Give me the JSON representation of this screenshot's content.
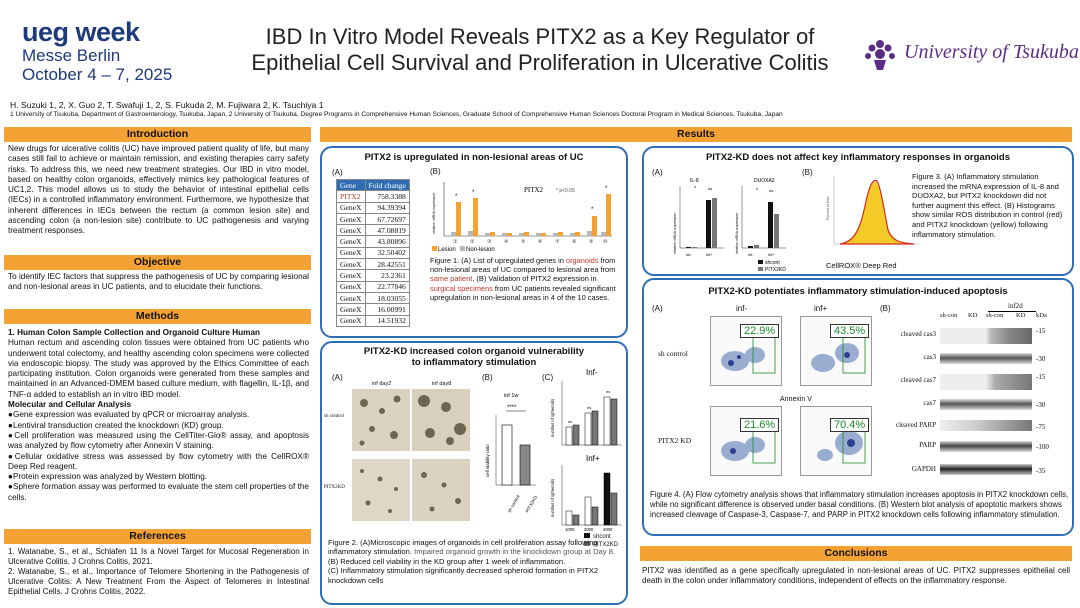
{
  "header": {
    "logo_main": "ueg week",
    "logo_city": "Messe Berlin",
    "logo_dates": "October 4 – 7, 2025",
    "title_line1": "IBD In Vitro Model Reveals PITX2 as a Key Regulator of",
    "title_line2": "Epithelial Cell Survival and Proliferation in Ulcerative Colitis",
    "university": "University of Tsukuba",
    "authors": "H. Suzuki 1, 2,  X. Guo 2,  T. Swafuji 1, 2,  S. Fukuda 2,  M. Fujiwara 2,  K. Tsuchiya 1",
    "affiliations": "1 University of Tsukuba, Department of Gastroenterology, Tsukuba, Japan, 2 University of Tsukuba, Degree Programs in Comprehensive Human Sciences, Graduate School of Comprehensive Human Sciences Doctoral Program in Medical Sciences, Tsukuba, Japan"
  },
  "colors": {
    "orange": "#f4a233",
    "blue": "#2f6db5",
    "green": "#1a8a2a",
    "red": "#c0392b",
    "purple": "#5b2d83"
  },
  "introduction": {
    "heading": "Introduction",
    "text": "New drugs for ulcerative colitis (UC) have improved patient quality of life, but many cases still fail to achieve or maintain remission, and existing therapies carry safety risks. To address this, we need new treatment strategies. Our IBD in vitro model, based on healthy colon organoids, effectively mimics key pathological features of UC1,2. This model allows us to study the behavior of intestinal epithelial cells (IECs) in a controlled inflammatory environment. Furthermore, we hypothesize that inherent differences in IECs between the rectum (a common lesion site) and ascending colon (a non-lesion site) contribute to UC pathogenesis and varying treatment responses."
  },
  "objective": {
    "heading": "Objective",
    "text": "To identify IEC factors that suppress the pathogenesis of UC by comparing lesional and non-lesional areas in UC patients, and to elucidate their functions."
  },
  "methods": {
    "heading": "Methods",
    "sub1": "1.   Human Colon Sample Collection and Organoid Culture Human",
    "p1": "Human rectum and ascending colon tissues were obtained from UC patients who underwent total colectomy, and healthy ascending colon specimens were collected via endoscopic biopsy. The study was approved by the Ethics Committee of each participating institution. Colon organoids were generated from these samples and maintained in an Advanced-DMEM based culture medium, with flagellin, IL-1β, and TNF-α added to establish an in vitro IBD model.",
    "sub2": "Molecular and Cellular Analysis",
    "bullets": [
      "●Gene expression was evaluated by qPCR or microarray analysis.",
      "●Lentiviral transduction created the knockdown (KD) group.",
      "●Cell proliferation was measured using the CellTiter-Glo® assay, and apoptosis was analyzed by flow cytometry after Annexin V staining.",
      "●Cellular oxidative stress was assessed by flow cytometry with the CellROX® Deep Red reagent.",
      "●Protein expression was analyzed by Western blotting.",
      "●Sphere formation assay was performed to evaluate the stem cell properties of the cells."
    ]
  },
  "references": {
    "heading": "References",
    "items": [
      "1. Watanabe, S., et al., Schlafen 11 Is a Novel Target for Mucosal Regeneration in Ulcerative Colitis. J Crohns Colitis, 2021.",
      "2. Watanabe, S., et al., Importance of Telomere Shortening in the Pathogenesis of Ulcerative Colitis: A New Treatment From the Aspect of Telomeres in Intestinal Epithelial Cells. J Crohns Colitis, 2022."
    ]
  },
  "results": {
    "heading": "Results",
    "fig1": {
      "title": "PITX2 is upregulated in non-lesional areas of UC",
      "label_a": "(A)",
      "label_b": "(B)",
      "table_head": [
        "Gene",
        "Fold change"
      ],
      "table_rows": [
        [
          "PITX2",
          "758.3388"
        ],
        [
          "GeneX",
          "94.39394"
        ],
        [
          "GeneX",
          "67.72697"
        ],
        [
          "GeneX",
          "47.08819"
        ],
        [
          "GeneX",
          "43.80896"
        ],
        [
          "GeneX",
          "32.50402"
        ],
        [
          "GeneX",
          "28.42551"
        ],
        [
          "GeneX",
          "23.2361"
        ],
        [
          "GeneX",
          "22.77846"
        ],
        [
          "GeneX",
          "18.03055"
        ],
        [
          "GeneX",
          "16.00991"
        ],
        [
          "GeneX",
          "14.51932"
        ]
      ],
      "chart_title": "PITX2",
      "pval": "* p<0.05",
      "ylabel": "relative mRNA expression",
      "legend_lesion": "Lesion",
      "legend_nonlesion": "Non-lesion",
      "caption_1": "Figure 1. (A) List of upregulated genes in ",
      "caption_organoids": "organoids",
      "caption_2": " from non-lesional areas of UC compared to lesional area from ",
      "caption_same": "same patient",
      "caption_3": ". (B) Validation of PITX2 expression in ",
      "caption_surgical": "surgical specimens",
      "caption_4": " from UC patients revealed significant upregulation in non-lesional areas in 4 of the 10 cases."
    },
    "fig2": {
      "title": "PITX2-KD increased colon organoid vulnerability to inflammatory stimulation",
      "label_a": "(A)",
      "label_b": "(B)",
      "label_c": "(C)",
      "inf_day2": "inf day2",
      "inf_day8": "inf day8",
      "sh_control": "sh control",
      "pitx2kd": "PITX2KD",
      "b_title": "inf 1w",
      "b_sig": "****",
      "b_ylabel": "cell viability ratio",
      "b_xlabels": [
        "sh control",
        "PITX2KD"
      ],
      "c_title_minus": "Inf-",
      "c_title_plus": "Inf+",
      "c_ylabel": "number of spheroids",
      "c_xlabels": [
        "1000",
        "2000",
        "4000"
      ],
      "legend_sh": "shcont",
      "legend_kd": "PITX2KD",
      "caption_1": "Figure 2. (A)Microscopic images of organoids in cell proliferation assay following inflammatory stimulation. ",
      "caption_grey": "Impaired organoid growth in the knockdown group at Day 8.",
      "caption_2": "(B) Reduced cell viability in the KD group after 1 week of inflammation.",
      "caption_3": "(C) Inflammatory stimulation significantly decreased spheroid formation in PITX2 knockdown cells"
    },
    "fig3": {
      "title": "PITX2-KD does not affect key inflammatory responses in organoids",
      "label_a": "(A)",
      "label_b": "(B)",
      "il8": "IL-8",
      "duoxa2": "DUOXA2",
      "ylabel": "relative mRNA expression",
      "x_minus": "inf-",
      "x_plus": "inf+",
      "ns": "ns",
      "star": "*",
      "legend_sh": "shcont",
      "legend_kd": "PITX2KD",
      "hist_label": "CellROX® Deep Red",
      "caption": "Figure 3. (A) Inflammatory stimulation increased the mRNA expression of IL-8 and DUOXA2, but PITX2 knockdown did not further augment this effect. (B) Histograms show similar ROS distribution in control (red) and PITX2 knockdown (yellow) following inflammatory stimulation."
    },
    "fig4": {
      "title": "PITX2-KD potentiates inflammatory stimulation-induced apoptosis",
      "label_a": "(A)",
      "label_b": "(B)",
      "inf_minus": "inf-",
      "inf_plus": "inf+",
      "sh_control": "sh control",
      "pitx2kd": "PITX2 KD",
      "annexin": "Annexin V",
      "percents": [
        "22.9%",
        "43.5%",
        "21.6%",
        "70.4%"
      ],
      "wb_top": "inf2d",
      "wb_cols": [
        "sh-con",
        "KD",
        "sh-con",
        "KD",
        "kDa"
      ],
      "wb_rows": [
        {
          "label": "cleaved cas3",
          "kda": "-15"
        },
        {
          "label": "cas3",
          "kda": "-30"
        },
        {
          "label": "cleaved cas7",
          "kda": "-15"
        },
        {
          "label": "cas7",
          "kda": "-30"
        },
        {
          "label": "cleaved PARP",
          "kda": "-75"
        },
        {
          "label": "PARP",
          "kda": "-100"
        },
        {
          "label": "GAPDH",
          "kda": "-35"
        }
      ],
      "caption": "Figure 4. (A) Flow cytometry analysis shows that inflammatory stimulation increases apoptosis in PITX2 knockdown cells, while no significant difference is observed under basal conditions. (B) Western blot analysis of apoptotic markers shows increased cleavage of Caspase-3, Caspase-7, and PARP in PITX2 knockdown cells following inflammatory stimulation."
    }
  },
  "conclusions": {
    "heading": "Conclusions",
    "text": "PITX2 was identified as a gene specifically upregulated in non-lesional areas of UC. PITX2 suppresses epithelial cell death in the colon under inflammatory conditions, independent of effects on the inflammatory response."
  }
}
